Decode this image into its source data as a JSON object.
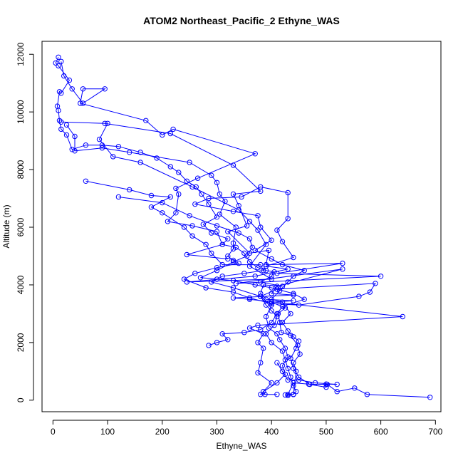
{
  "chart_data": {
    "type": "line",
    "title": "ATOM2 Northeast_Pacific_2 Ethyne_WAS",
    "xlabel": "Ethyne_WAS",
    "ylabel": "Altitude (m)",
    "xlim": [
      -20,
      710
    ],
    "ylim": [
      -400,
      12450
    ],
    "x_ticks": [
      0,
      100,
      200,
      300,
      400,
      500,
      600,
      700
    ],
    "y_ticks": [
      0,
      2000,
      4000,
      6000,
      8000,
      10000,
      12000
    ],
    "markers": "open-circle",
    "color": "#0000ff",
    "grid": false,
    "series": [
      {
        "points": [
          [
            690,
            100
          ],
          [
            575,
            200
          ],
          [
            552,
            420
          ],
          [
            520,
            300
          ],
          [
            502,
            550
          ],
          [
            468,
            560
          ],
          [
            440,
            600
          ],
          [
            430,
            200
          ],
          [
            440,
            200
          ],
          [
            425,
            180
          ],
          [
            430,
            160
          ],
          [
            440,
            200
          ],
          [
            445,
            1000
          ],
          [
            440,
            1300
          ],
          [
            452,
            1600
          ],
          [
            448,
            1900
          ],
          [
            435,
            2250
          ],
          [
            418,
            2350
          ],
          [
            415,
            2700
          ],
          [
            412,
            3000
          ],
          [
            425,
            3200
          ],
          [
            400,
            3400
          ],
          [
            440,
            3450
          ],
          [
            390,
            3500
          ],
          [
            380,
            3700
          ],
          [
            385,
            4000
          ],
          [
            420,
            3950
          ],
          [
            380,
            4100
          ],
          [
            400,
            4300
          ],
          [
            405,
            4450
          ],
          [
            390,
            4500
          ],
          [
            375,
            4600
          ],
          [
            360,
            4800
          ],
          [
            350,
            5100
          ],
          [
            335,
            5300
          ],
          [
            310,
            5400
          ],
          [
            320,
            5600
          ],
          [
            290,
            5800
          ],
          [
            275,
            6100
          ],
          [
            300,
            6350
          ],
          [
            285,
            6800
          ],
          [
            272,
            7150
          ],
          [
            262,
            7400
          ],
          [
            245,
            7600
          ],
          [
            230,
            7900
          ],
          [
            215,
            8100
          ],
          [
            190,
            8400
          ],
          [
            160,
            8600
          ],
          [
            120,
            8800
          ],
          [
            90,
            8850
          ],
          [
            60,
            8850
          ],
          [
            35,
            8700
          ],
          [
            25,
            9200
          ],
          [
            15,
            9400
          ],
          [
            12,
            9700
          ],
          [
            10,
            10050
          ],
          [
            8,
            10200
          ],
          [
            12,
            10700
          ],
          [
            15,
            10650
          ],
          [
            30,
            11100
          ],
          [
            10,
            11600
          ],
          [
            5,
            11700
          ],
          [
            10,
            11900
          ]
        ]
      },
      {
        "points": [
          [
            15,
            11750
          ],
          [
            20,
            11250
          ],
          [
            35,
            10800
          ],
          [
            55,
            10300
          ],
          [
            95,
            10800
          ],
          [
            55,
            10800
          ],
          [
            50,
            10300
          ],
          [
            170,
            9700
          ],
          [
            200,
            9200
          ],
          [
            220,
            9400
          ],
          [
            370,
            8550
          ],
          [
            265,
            7700
          ],
          [
            225,
            7350
          ],
          [
            230,
            7150
          ],
          [
            225,
            6500
          ],
          [
            210,
            6200
          ],
          [
            255,
            6050
          ],
          [
            300,
            5850
          ],
          [
            310,
            5400
          ],
          [
            245,
            5050
          ],
          [
            320,
            4900
          ]
        ]
      },
      {
        "points": [
          [
            15,
            9650
          ],
          [
            95,
            9600
          ],
          [
            215,
            9250
          ],
          [
            330,
            8150
          ],
          [
            380,
            7250
          ],
          [
            330,
            7150
          ],
          [
            340,
            6750
          ],
          [
            355,
            6050
          ],
          [
            320,
            5850
          ],
          [
            360,
            5100
          ],
          [
            395,
            5200
          ],
          [
            390,
            4700
          ],
          [
            530,
            4750
          ],
          [
            410,
            4400
          ],
          [
            600,
            4300
          ],
          [
            335,
            4050
          ],
          [
            530,
            4550
          ],
          [
            410,
            3950
          ],
          [
            400,
            3700
          ],
          [
            440,
            3650
          ],
          [
            330,
            3550
          ],
          [
            360,
            3500
          ],
          [
            640,
            2900
          ],
          [
            375,
            2600
          ],
          [
            360,
            2500
          ],
          [
            385,
            2300
          ],
          [
            375,
            2000
          ],
          [
            385,
            1800
          ],
          [
            380,
            1300
          ],
          [
            375,
            950
          ],
          [
            400,
            600
          ],
          [
            380,
            200
          ],
          [
            410,
            200
          ]
        ]
      },
      {
        "points": [
          [
            100,
            9600
          ],
          [
            85,
            9050
          ],
          [
            110,
            8450
          ],
          [
            160,
            8250
          ],
          [
            255,
            7400
          ],
          [
            340,
            6600
          ],
          [
            360,
            6200
          ],
          [
            375,
            5900
          ],
          [
            390,
            5400
          ],
          [
            360,
            4650
          ],
          [
            400,
            4200
          ],
          [
            245,
            4100
          ],
          [
            370,
            4300
          ],
          [
            430,
            4550
          ],
          [
            390,
            4650
          ],
          [
            440,
            4950
          ],
          [
            420,
            5500
          ],
          [
            410,
            5900
          ],
          [
            430,
            6300
          ],
          [
            430,
            7200
          ],
          [
            380,
            7400
          ],
          [
            345,
            7050
          ],
          [
            285,
            7000
          ],
          [
            260,
            6800
          ],
          [
            330,
            6550
          ],
          [
            375,
            6400
          ],
          [
            380,
            6000
          ],
          [
            400,
            5550
          ],
          [
            370,
            5200
          ],
          [
            400,
            4900
          ],
          [
            420,
            4700
          ],
          [
            460,
            4500
          ],
          [
            440,
            4300
          ],
          [
            430,
            4100
          ],
          [
            415,
            3800
          ],
          [
            400,
            3500
          ],
          [
            420,
            3400
          ],
          [
            435,
            3000
          ],
          [
            420,
            2700
          ],
          [
            430,
            2400
          ],
          [
            440,
            2200
          ],
          [
            450,
            2050
          ],
          [
            445,
            1800
          ],
          [
            435,
            1450
          ],
          [
            440,
            1100
          ],
          [
            450,
            800
          ],
          [
            470,
            550
          ],
          [
            500,
            450
          ],
          [
            500,
            560
          ],
          [
            520,
            550
          ],
          [
            480,
            600
          ],
          [
            450,
            700
          ],
          [
            430,
            700
          ],
          [
            420,
            1000
          ],
          [
            410,
            1300
          ]
        ]
      },
      {
        "points": [
          [
            25,
            9550
          ],
          [
            40,
            9150
          ],
          [
            40,
            8650
          ],
          [
            90,
            8750
          ],
          [
            140,
            8600
          ],
          [
            250,
            8250
          ],
          [
            290,
            7800
          ],
          [
            300,
            7550
          ],
          [
            305,
            7150
          ],
          [
            315,
            6900
          ],
          [
            305,
            6450
          ],
          [
            335,
            6000
          ],
          [
            330,
            5450
          ],
          [
            330,
            5250
          ],
          [
            320,
            5000
          ],
          [
            330,
            4850
          ],
          [
            340,
            4750
          ],
          [
            300,
            4600
          ],
          [
            260,
            4400
          ],
          [
            240,
            4200
          ],
          [
            280,
            3900
          ],
          [
            330,
            3750
          ],
          [
            360,
            3550
          ],
          [
            400,
            3350
          ],
          [
            450,
            3300
          ],
          [
            560,
            3600
          ],
          [
            580,
            3750
          ],
          [
            590,
            4050
          ],
          [
            410,
            3850
          ],
          [
            380,
            3600
          ],
          [
            400,
            3300
          ],
          [
            390,
            2900
          ],
          [
            395,
            2500
          ],
          [
            410,
            2300
          ],
          [
            415,
            2100
          ],
          [
            425,
            1800
          ],
          [
            430,
            1500
          ],
          [
            420,
            1200
          ],
          [
            425,
            900
          ],
          [
            410,
            600
          ],
          [
            385,
            300
          ],
          [
            388,
            200
          ]
        ]
      },
      {
        "points": [
          [
            60,
            7600
          ],
          [
            140,
            7300
          ],
          [
            180,
            7100
          ],
          [
            215,
            7050
          ],
          [
            180,
            6700
          ],
          [
            200,
            6500
          ],
          [
            240,
            6000
          ],
          [
            255,
            5700
          ],
          [
            280,
            5400
          ],
          [
            290,
            5100
          ],
          [
            310,
            4700
          ],
          [
            380,
            4700
          ],
          [
            385,
            4500
          ],
          [
            350,
            4400
          ],
          [
            310,
            4300
          ],
          [
            290,
            4100
          ],
          [
            330,
            3900
          ],
          [
            380,
            3600
          ],
          [
            390,
            3300
          ],
          [
            400,
            3100
          ],
          [
            410,
            2900
          ],
          [
            405,
            2600
          ],
          [
            390,
            2300
          ],
          [
            400,
            2000
          ],
          [
            420,
            1700
          ],
          [
            425,
            1400
          ],
          [
            430,
            1100
          ],
          [
            435,
            800
          ],
          [
            440,
            500
          ],
          [
            445,
            300
          ],
          [
            440,
            200
          ]
        ]
      },
      {
        "points": [
          [
            120,
            7050
          ],
          [
            200,
            6850
          ],
          [
            250,
            6400
          ],
          [
            300,
            6050
          ],
          [
            340,
            5800
          ],
          [
            360,
            5600
          ],
          [
            365,
            5300
          ],
          [
            355,
            5000
          ],
          [
            330,
            4800
          ],
          [
            300,
            4500
          ],
          [
            270,
            4250
          ],
          [
            300,
            4200
          ],
          [
            330,
            4150
          ],
          [
            370,
            4000
          ],
          [
            400,
            3900
          ],
          [
            440,
            3700
          ],
          [
            460,
            3500
          ],
          [
            420,
            3250
          ],
          [
            410,
            3000
          ],
          [
            400,
            2700
          ],
          [
            380,
            2450
          ],
          [
            350,
            2350
          ],
          [
            310,
            2300
          ],
          [
            320,
            2100
          ],
          [
            300,
            2000
          ],
          [
            285,
            1900
          ]
        ]
      }
    ]
  }
}
